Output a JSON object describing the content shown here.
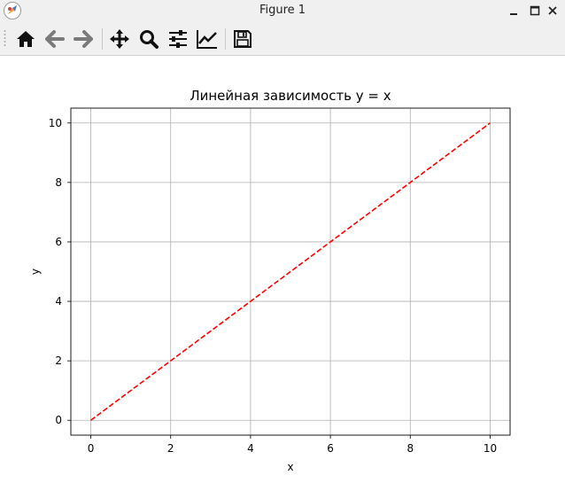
{
  "window": {
    "title": "Figure 1"
  },
  "toolbar": {
    "buttons": [
      {
        "icon": "home-icon",
        "tooltip": "Home"
      },
      {
        "icon": "back-icon",
        "tooltip": "Back"
      },
      {
        "icon": "forward-icon",
        "tooltip": "Forward"
      },
      {
        "icon": "pan-icon",
        "tooltip": "Pan"
      },
      {
        "icon": "zoom-icon",
        "tooltip": "Zoom"
      },
      {
        "icon": "subplots-icon",
        "tooltip": "Subplots"
      },
      {
        "icon": "customize-icon",
        "tooltip": "Customize"
      },
      {
        "icon": "save-icon",
        "tooltip": "Save"
      }
    ]
  },
  "chart_data": {
    "type": "line",
    "title": "Линейная зависимость y = x",
    "xlabel": "x",
    "ylabel": "y",
    "xlim": [
      -0.5,
      10.5
    ],
    "ylim": [
      -0.5,
      10.5
    ],
    "xticks": [
      0,
      2,
      4,
      6,
      8,
      10
    ],
    "yticks": [
      0,
      2,
      4,
      6,
      8,
      10
    ],
    "grid": true,
    "series": [
      {
        "x": [
          0,
          10
        ],
        "y": [
          0,
          10
        ],
        "color": "#ff0000",
        "linestyle": "dashed"
      }
    ]
  }
}
